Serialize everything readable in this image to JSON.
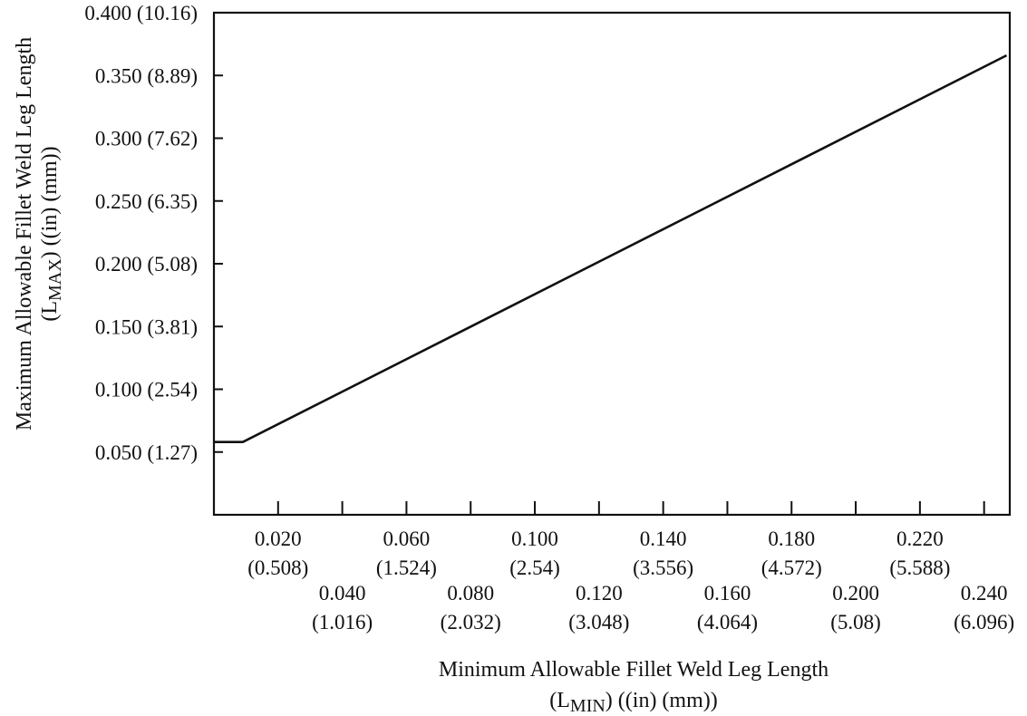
{
  "chart_data": {
    "type": "line",
    "title": "",
    "xlabel": {
      "line1": "Minimum Allowable Fillet Weld Leg Length",
      "line2_prefix": "(L",
      "line2_sub": "MIN",
      "line2_suffix": ") ((in) (mm))"
    },
    "ylabel": {
      "line1": "Maximum Allowable Fillet Weld Leg Length",
      "line2_prefix": "(L",
      "line2_sub": "MAX",
      "line2_suffix": ") ((in) (mm))"
    },
    "xlim": [
      0.0,
      0.248
    ],
    "ylim": [
      0.0,
      0.4
    ],
    "grid": false,
    "x_ticks": [
      {
        "value": 0.02,
        "in": "0.020",
        "mm": "(0.508)"
      },
      {
        "value": 0.04,
        "in": "0.040",
        "mm": "(1.016)"
      },
      {
        "value": 0.06,
        "in": "0.060",
        "mm": "(1.524)"
      },
      {
        "value": 0.08,
        "in": "0.080",
        "mm": "(2.032)"
      },
      {
        "value": 0.1,
        "in": "0.100",
        "mm": "(2.54)"
      },
      {
        "value": 0.12,
        "in": "0.120",
        "mm": "(3.048)"
      },
      {
        "value": 0.14,
        "in": "0.140",
        "mm": "(3.556)"
      },
      {
        "value": 0.16,
        "in": "0.160",
        "mm": "(4.064)"
      },
      {
        "value": 0.18,
        "in": "0.180",
        "mm": "(4.572)"
      },
      {
        "value": 0.2,
        "in": "0.200",
        "mm": "(5.08)"
      },
      {
        "value": 0.22,
        "in": "0.220",
        "mm": "(5.588)"
      },
      {
        "value": 0.24,
        "in": "0.240",
        "mm": "(6.096)"
      }
    ],
    "y_ticks": [
      {
        "value": 0.05,
        "label": "0.050 (1.27)"
      },
      {
        "value": 0.1,
        "label": "0.100 (2.54)"
      },
      {
        "value": 0.15,
        "label": "0.150 (3.81)"
      },
      {
        "value": 0.2,
        "label": "0.200 (5.08)"
      },
      {
        "value": 0.25,
        "label": "0.250 (6.35)"
      },
      {
        "value": 0.3,
        "label": "0.300 (7.62)"
      },
      {
        "value": 0.35,
        "label": "0.350 (8.89)"
      },
      {
        "value": 0.4,
        "label": "0.400 (10.16)"
      }
    ],
    "series": [
      {
        "x": [
          0.0,
          0.009,
          0.247
        ],
        "y": [
          0.058,
          0.058,
          0.366
        ]
      }
    ],
    "line_color": "#111111"
  }
}
